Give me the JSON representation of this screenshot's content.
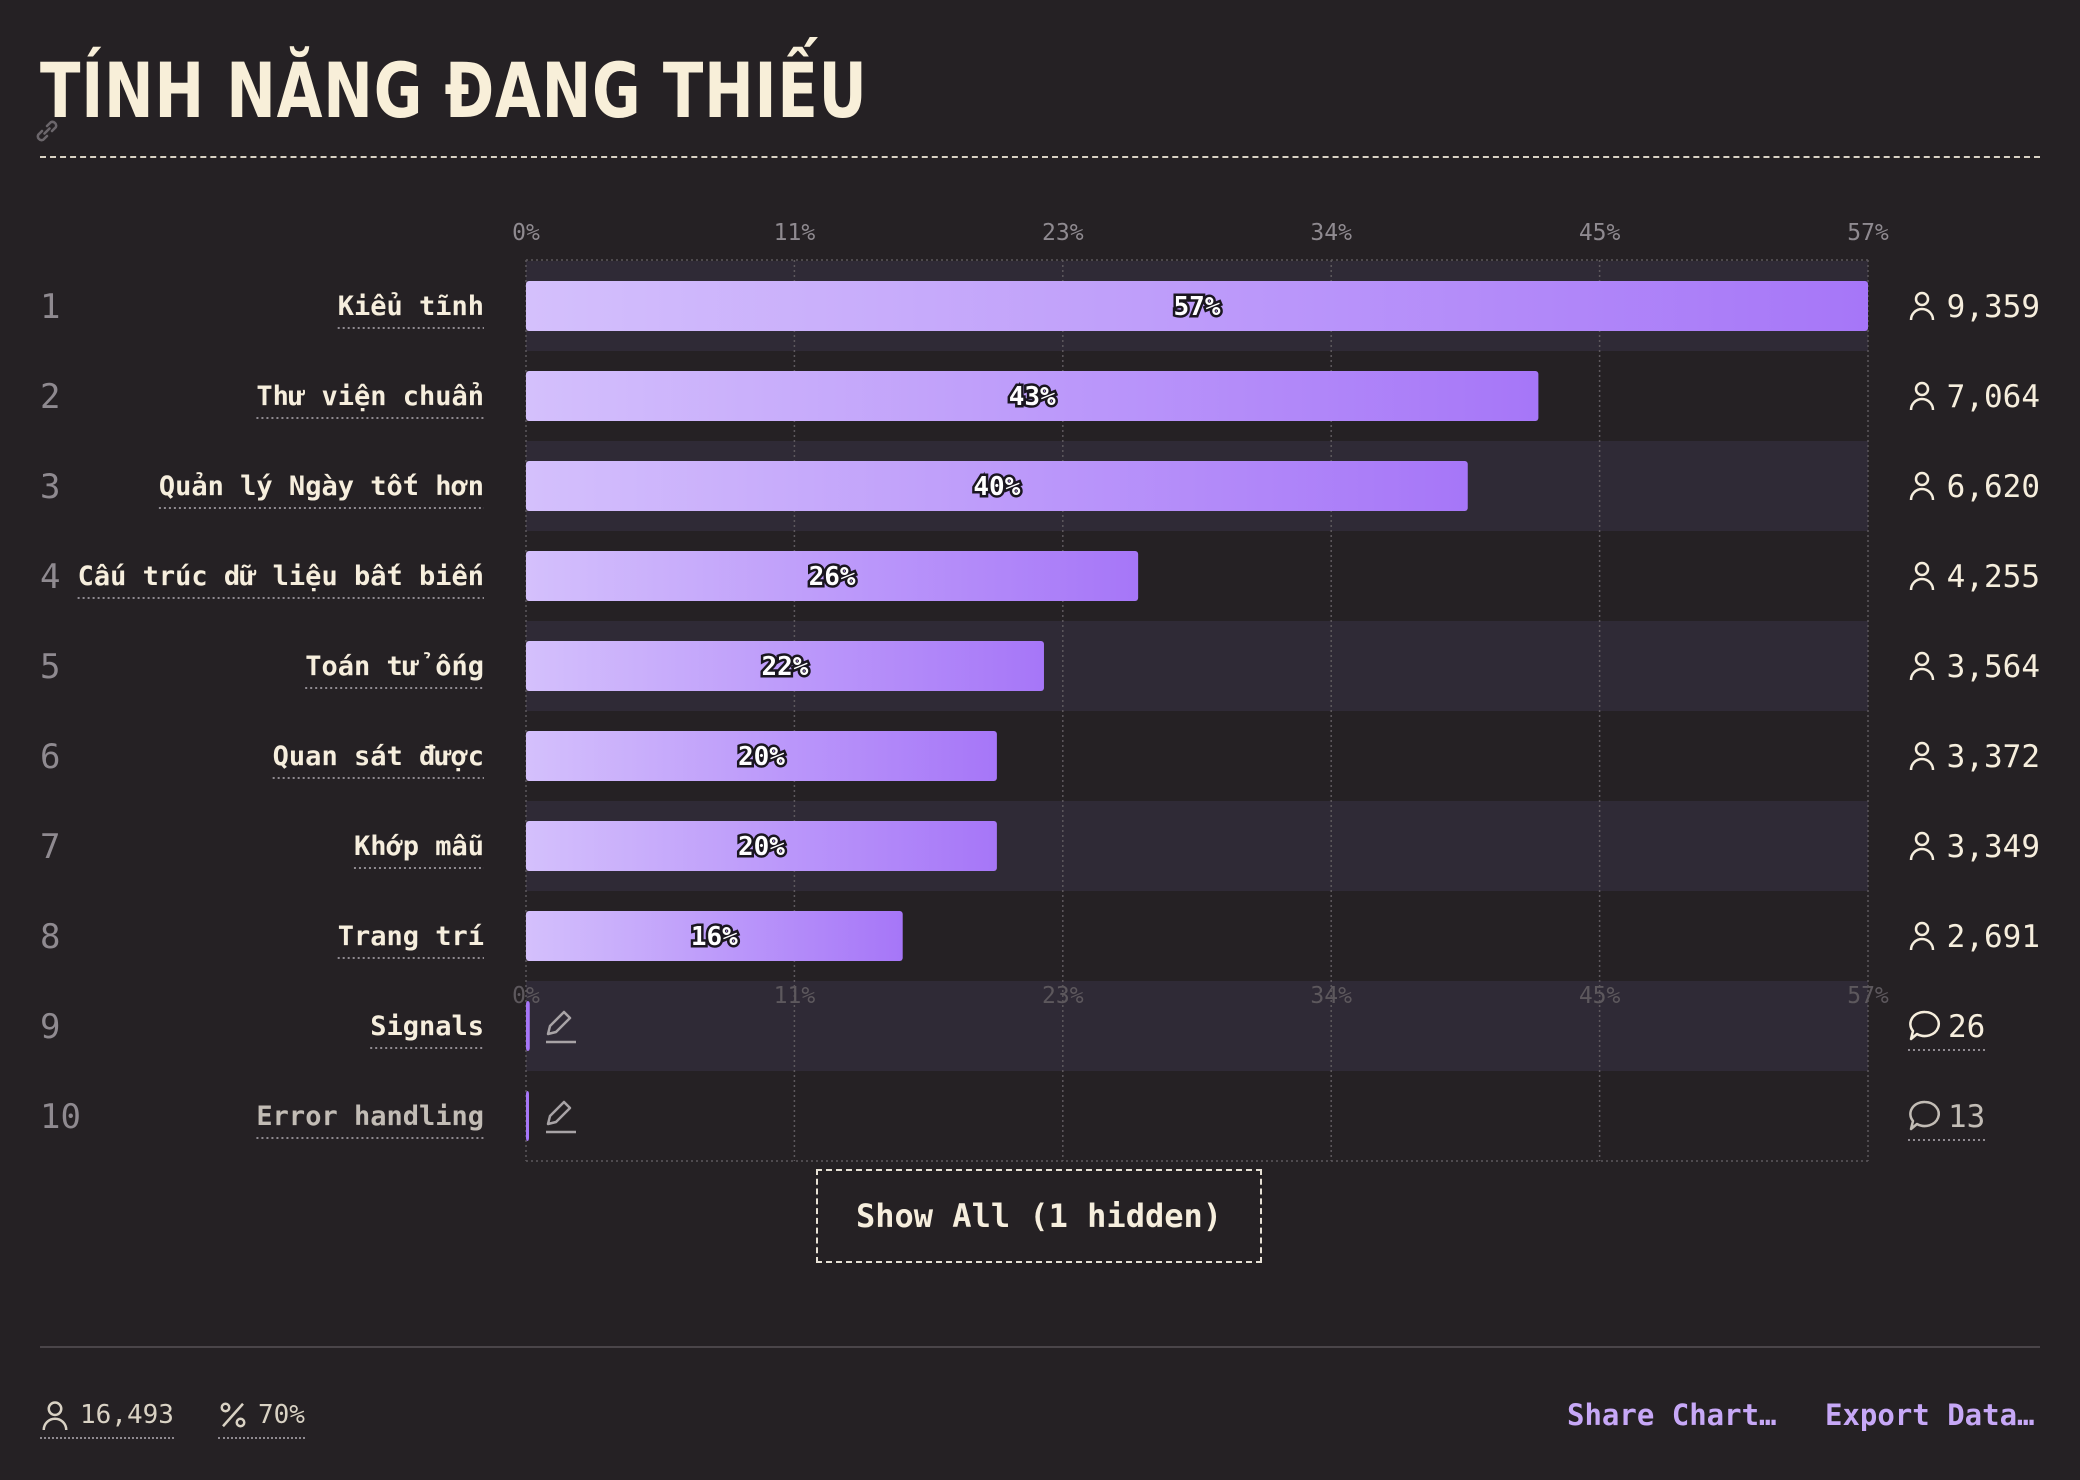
{
  "header": {
    "title": "TÍNH NĂNG ĐANG THIẾU"
  },
  "chart_data": {
    "type": "bar",
    "orientation": "horizontal",
    "title": "TÍNH NĂNG ĐANG THIẾU",
    "xlim": [
      0,
      57
    ],
    "x_ticks": [
      "0%",
      "11%",
      "23%",
      "34%",
      "45%",
      "57%"
    ],
    "grid": true,
    "rows": [
      {
        "rank": "1",
        "label": "Kiểu tĩnh",
        "value": 57,
        "value_label": "57%",
        "count": "9,359",
        "count_icon": "person-icon"
      },
      {
        "rank": "2",
        "label": "Thư viện chuẩn",
        "value": 43,
        "value_label": "43%",
        "count": "7,064",
        "count_icon": "person-icon"
      },
      {
        "rank": "3",
        "label": "Quản lý Ngày tốt hơn",
        "value": 40,
        "value_label": "40%",
        "count": "6,620",
        "count_icon": "person-icon"
      },
      {
        "rank": "4",
        "label": "Cấu trúc dữ liệu bất biến",
        "value": 26,
        "value_label": "26%",
        "count": "4,255",
        "count_icon": "person-icon"
      },
      {
        "rank": "5",
        "label": "Toán tử ống",
        "value": 22,
        "value_label": "22%",
        "count": "3,564",
        "count_icon": "person-icon"
      },
      {
        "rank": "6",
        "label": "Quan sát được",
        "value": 20,
        "value_label": "20%",
        "count": "3,372",
        "count_icon": "person-icon"
      },
      {
        "rank": "7",
        "label": "Khớp mẫu",
        "value": 20,
        "value_label": "20%",
        "count": "3,349",
        "count_icon": "person-icon"
      },
      {
        "rank": "8",
        "label": "Trang trí",
        "value": 16,
        "value_label": "16%",
        "count": "2,691",
        "count_icon": "person-icon"
      },
      {
        "rank": "9",
        "label": "Signals",
        "value": 0.16,
        "value_label": "",
        "count": "26",
        "count_icon": "comment-icon"
      },
      {
        "rank": "10",
        "label": "Error handling",
        "value": 0.08,
        "value_label": "",
        "count": "13",
        "count_icon": "comment-icon"
      }
    ]
  },
  "controls": {
    "show_all": "Show All (1 hidden)"
  },
  "footer": {
    "respondents": "16,493",
    "percent": "70%",
    "share": "Share Chart…",
    "export": "Export Data…"
  },
  "colors": {
    "background": "#252124",
    "bar_start": "#d4c0fc",
    "bar_end": "#a676f8",
    "text": "#f6eedd",
    "link": "#c7a8f7"
  }
}
